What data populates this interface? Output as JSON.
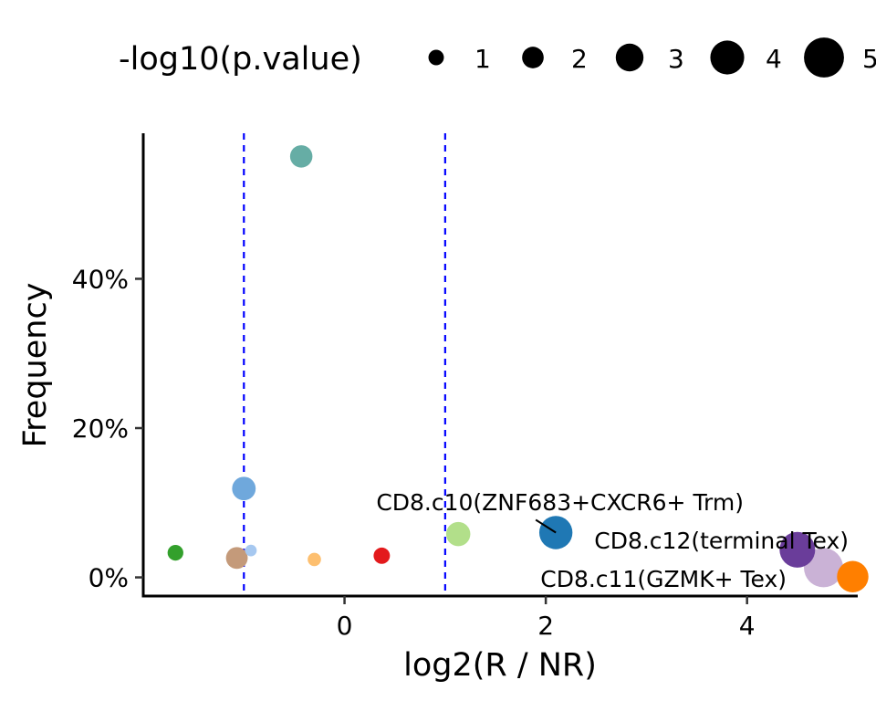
{
  "chart_data": {
    "type": "scatter",
    "xlabel": "log2(R / NR)",
    "ylabel": "Frequency",
    "xlim": [
      -2.0,
      5.1
    ],
    "ylim": [
      -2.5,
      59.5
    ],
    "x_ticks": [
      0,
      2,
      4
    ],
    "x_tick_labels": [
      "0",
      "2",
      "4"
    ],
    "y_ticks": [
      0,
      20,
      40
    ],
    "y_tick_labels": [
      "0%",
      "20%",
      "40%"
    ],
    "grid": false,
    "reference_lines": [
      -1,
      1
    ],
    "reference_line_color": "#0000ff",
    "size_legend": {
      "title": "-log10(p.value)",
      "placement": "top",
      "values": [
        1,
        2,
        3,
        4,
        5
      ],
      "labels": [
        "1",
        "2",
        "3",
        "4",
        "5"
      ]
    },
    "points": [
      {
        "x": -0.43,
        "y": 56.4,
        "size": 2.2,
        "color": "#66ADA5",
        "label": ""
      },
      {
        "x": -1.0,
        "y": 11.9,
        "size": 2.4,
        "color": "#6FA8DC",
        "label": ""
      },
      {
        "x": -0.93,
        "y": 3.6,
        "size": 0.4,
        "color": "#A6C8F0",
        "label": ""
      },
      {
        "x": -1.68,
        "y": 3.3,
        "size": 1.1,
        "color": "#33A02C",
        "label": ""
      },
      {
        "x": -1.07,
        "y": 2.6,
        "size": 2.1,
        "color": "#C49A7A",
        "label": ""
      },
      {
        "x": -0.3,
        "y": 2.4,
        "size": 0.7,
        "color": "#FDBF6F",
        "label": ""
      },
      {
        "x": 0.37,
        "y": 2.9,
        "size": 1.2,
        "color": "#E31A1C",
        "label": ""
      },
      {
        "x": 1.13,
        "y": 5.8,
        "size": 2.5,
        "color": "#B2DF8A",
        "label": ""
      },
      {
        "x": 2.1,
        "y": 6.0,
        "size": 4.0,
        "color": "#1F78B4",
        "label": "CD8.c10(ZNF683+CXCR6+ Trm)"
      },
      {
        "x": 4.5,
        "y": 3.7,
        "size": 4.4,
        "color": "#6A3D9A",
        "label": "CD8.c12(terminal Tex)"
      },
      {
        "x": 4.76,
        "y": 1.3,
        "size": 5.0,
        "color": "#CAB2D6",
        "label": ""
      },
      {
        "x": 5.05,
        "y": 0.1,
        "size": 3.7,
        "color": "#FF7F00",
        "label": "CD8.c11(GZMK+ Tex)"
      }
    ]
  }
}
